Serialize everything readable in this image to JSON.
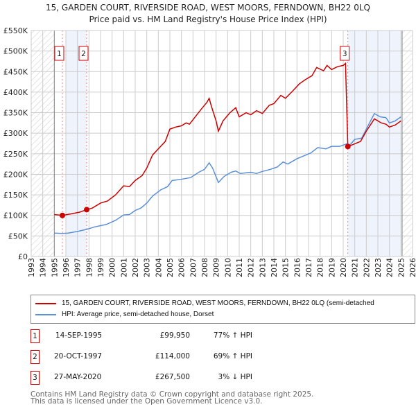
{
  "title": {
    "line1": "15, GARDEN COURT, RIVERSIDE ROAD, WEST MOORS, FERNDOWN, BH22 0LQ",
    "line2": "Price paid vs. HM Land Registry's House Price Index (HPI)"
  },
  "chart_data": {
    "type": "line",
    "xlim": [
      1993,
      2026
    ],
    "ylim": [
      0,
      550000
    ],
    "x_ticks": [
      "1993",
      "1994",
      "1995",
      "1996",
      "1997",
      "1998",
      "1999",
      "2000",
      "2001",
      "2002",
      "2003",
      "2004",
      "2005",
      "2006",
      "2007",
      "2008",
      "2009",
      "2010",
      "2011",
      "2012",
      "2013",
      "2014",
      "2015",
      "2016",
      "2017",
      "2018",
      "2019",
      "2020",
      "2021",
      "2022",
      "2023",
      "2024",
      "2025",
      "2026"
    ],
    "y_ticks": [
      {
        "v": 0,
        "label": "£0"
      },
      {
        "v": 50000,
        "label": "£50K"
      },
      {
        "v": 100000,
        "label": "£100K"
      },
      {
        "v": 150000,
        "label": "£150K"
      },
      {
        "v": 200000,
        "label": "£200K"
      },
      {
        "v": 250000,
        "label": "£250K"
      },
      {
        "v": 300000,
        "label": "£300K"
      },
      {
        "v": 350000,
        "label": "£350K"
      },
      {
        "v": 400000,
        "label": "£400K"
      },
      {
        "v": 450000,
        "label": "£450K"
      },
      {
        "v": 500000,
        "label": "£500K"
      },
      {
        "v": 550000,
        "label": "£550K"
      }
    ],
    "grid": true,
    "hatched_ranges": [
      [
        1993,
        1995
      ],
      [
        2025.1,
        2026
      ]
    ],
    "shaded_ranges": [
      [
        1996,
        1997.8
      ],
      [
        2020.4,
        2025.1
      ]
    ],
    "series": [
      {
        "name": "15, GARDEN COURT, RIVERSIDE ROAD, WEST MOORS, FERNDOWN, BH22 0LQ (semi-detached",
        "color": "#cc0000",
        "points": [
          [
            1995,
            102000
          ],
          [
            1995.7,
            99950
          ],
          [
            1996.5,
            104000
          ],
          [
            1997.2,
            108000
          ],
          [
            1997.8,
            114000
          ],
          [
            1998.3,
            118000
          ],
          [
            1999,
            130000
          ],
          [
            1999.6,
            135000
          ],
          [
            2000.3,
            150000
          ],
          [
            2001,
            172000
          ],
          [
            2001.5,
            170000
          ],
          [
            2002,
            185000
          ],
          [
            2002.6,
            197000
          ],
          [
            2003,
            215000
          ],
          [
            2003.5,
            247000
          ],
          [
            2004,
            262000
          ],
          [
            2004.6,
            280000
          ],
          [
            2005,
            310000
          ],
          [
            2005.5,
            315000
          ],
          [
            2006,
            318000
          ],
          [
            2006.4,
            325000
          ],
          [
            2006.7,
            322000
          ],
          [
            2007.2,
            340000
          ],
          [
            2007.7,
            358000
          ],
          [
            2008.2,
            375000
          ],
          [
            2008.4,
            385000
          ],
          [
            2008.6,
            365000
          ],
          [
            2009,
            330000
          ],
          [
            2009.2,
            305000
          ],
          [
            2009.6,
            330000
          ],
          [
            2010.2,
            350000
          ],
          [
            2010.7,
            362000
          ],
          [
            2011,
            340000
          ],
          [
            2011.6,
            350000
          ],
          [
            2012,
            345000
          ],
          [
            2012.5,
            355000
          ],
          [
            2013,
            348000
          ],
          [
            2013.6,
            368000
          ],
          [
            2014,
            372000
          ],
          [
            2014.6,
            392000
          ],
          [
            2015,
            385000
          ],
          [
            2015.6,
            402000
          ],
          [
            2016.2,
            420000
          ],
          [
            2016.7,
            430000
          ],
          [
            2017.3,
            440000
          ],
          [
            2017.7,
            460000
          ],
          [
            2018.3,
            452000
          ],
          [
            2018.6,
            465000
          ],
          [
            2019,
            455000
          ],
          [
            2019.5,
            462000
          ],
          [
            2020,
            465000
          ],
          [
            2020.2,
            470000
          ],
          [
            2020.4,
            267500
          ],
          [
            2020.8,
            272000
          ],
          [
            2021.5,
            280000
          ],
          [
            2022,
            305000
          ],
          [
            2022.7,
            335000
          ],
          [
            2023.3,
            325000
          ],
          [
            2023.7,
            322000
          ],
          [
            2024,
            315000
          ],
          [
            2024.5,
            320000
          ],
          [
            2025,
            330000
          ]
        ]
      },
      {
        "name": "HPI: Average price, semi-detached house, Dorset",
        "color": "#5b8fd6",
        "points": [
          [
            1995,
            57000
          ],
          [
            1995.7,
            56000
          ],
          [
            1996.2,
            57000
          ],
          [
            1997,
            61000
          ],
          [
            1997.8,
            66000
          ],
          [
            1998.5,
            72000
          ],
          [
            1999.5,
            78000
          ],
          [
            2000.3,
            88000
          ],
          [
            2001,
            101000
          ],
          [
            2001.5,
            102000
          ],
          [
            2002,
            112000
          ],
          [
            2002.5,
            118000
          ],
          [
            2003,
            130000
          ],
          [
            2003.5,
            147000
          ],
          [
            2004.2,
            162000
          ],
          [
            2004.8,
            170000
          ],
          [
            2005.2,
            185000
          ],
          [
            2006,
            188000
          ],
          [
            2006.8,
            192000
          ],
          [
            2007.5,
            205000
          ],
          [
            2008,
            212000
          ],
          [
            2008.4,
            228000
          ],
          [
            2008.7,
            215000
          ],
          [
            2009.2,
            180000
          ],
          [
            2009.7,
            195000
          ],
          [
            2010.3,
            205000
          ],
          [
            2010.7,
            208000
          ],
          [
            2011.1,
            202000
          ],
          [
            2012,
            205000
          ],
          [
            2012.5,
            202000
          ],
          [
            2013,
            207000
          ],
          [
            2013.7,
            212000
          ],
          [
            2014.3,
            218000
          ],
          [
            2014.8,
            230000
          ],
          [
            2015.2,
            225000
          ],
          [
            2016,
            238000
          ],
          [
            2016.6,
            245000
          ],
          [
            2017.2,
            252000
          ],
          [
            2017.8,
            265000
          ],
          [
            2018.5,
            262000
          ],
          [
            2019,
            268000
          ],
          [
            2019.7,
            268000
          ],
          [
            2020.3,
            274000
          ],
          [
            2020.6,
            272000
          ],
          [
            2021,
            285000
          ],
          [
            2021.6,
            288000
          ],
          [
            2022,
            310000
          ],
          [
            2022.7,
            348000
          ],
          [
            2023.2,
            340000
          ],
          [
            2023.7,
            338000
          ],
          [
            2024,
            325000
          ],
          [
            2024.5,
            330000
          ],
          [
            2025,
            340000
          ]
        ]
      }
    ],
    "markers": [
      {
        "label": "1",
        "x": 1995.7,
        "y": 99950
      },
      {
        "label": "2",
        "x": 1997.8,
        "y": 114000
      },
      {
        "label": "3",
        "x": 2020.4,
        "y": 267500
      }
    ]
  },
  "legend": {
    "red_label": "15, GARDEN COURT, RIVERSIDE ROAD, WEST MOORS, FERNDOWN, BH22 0LQ (semi-detached",
    "blue_label": "HPI: Average price, semi-detached house, Dorset"
  },
  "table": [
    {
      "num": "1",
      "date": "14-SEP-1995",
      "price": "£99,950",
      "hpi": "77% ↑ HPI"
    },
    {
      "num": "2",
      "date": "20-OCT-1997",
      "price": "£114,000",
      "hpi": "69% ↑ HPI"
    },
    {
      "num": "3",
      "date": "27-MAY-2020",
      "price": "£267,500",
      "hpi": "3% ↓ HPI"
    }
  ],
  "footer": {
    "line1": "Contains HM Land Registry data © Crown copyright and database right 2025.",
    "line2": "This data is licensed under the Open Government Licence v3.0."
  }
}
